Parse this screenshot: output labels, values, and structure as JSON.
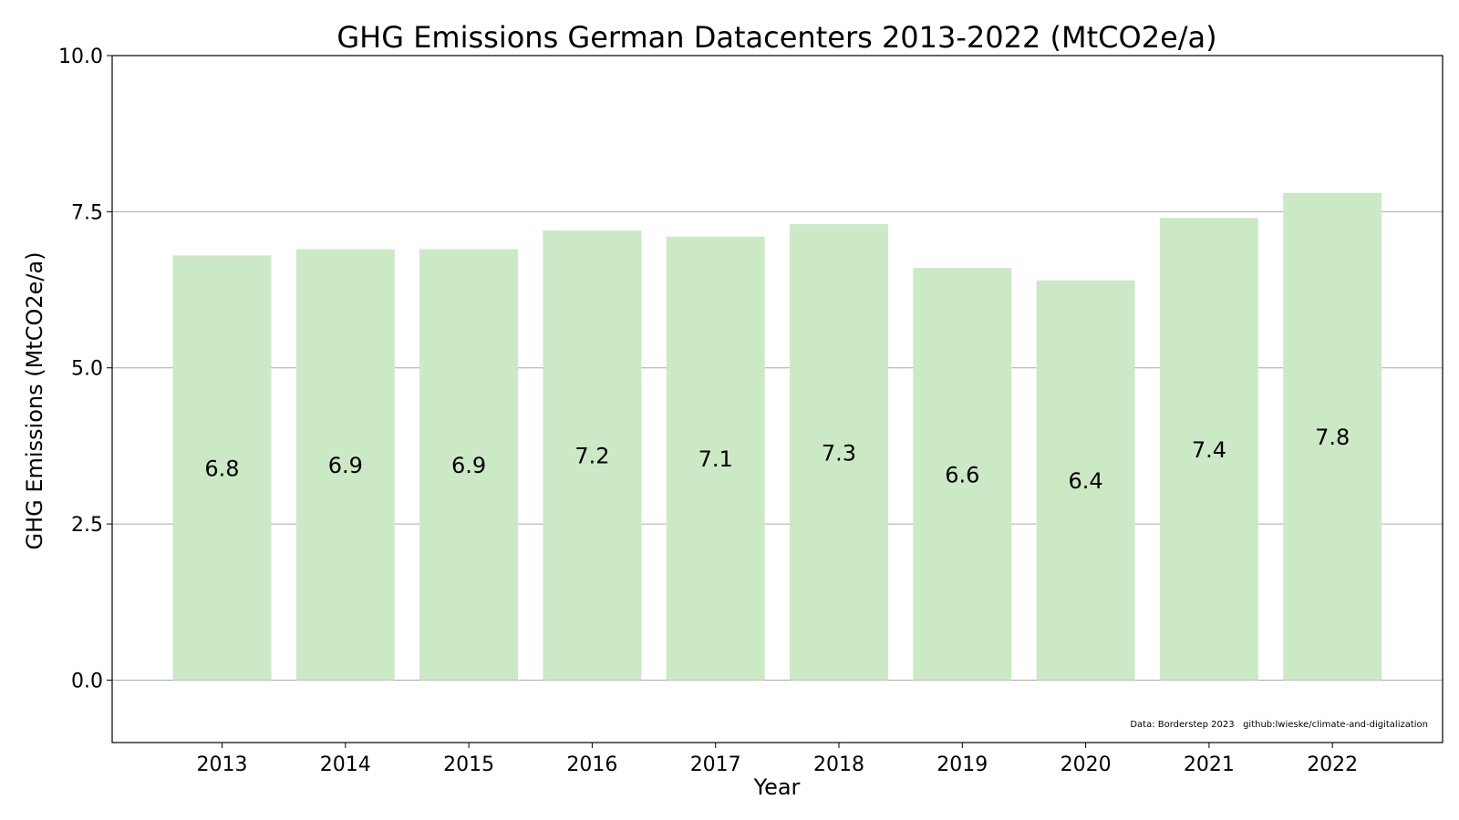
{
  "chart_data": {
    "type": "bar",
    "title": "GHG Emissions German Datacenters 2013-2022 (MtCO2e/a)",
    "xlabel": "Year",
    "ylabel": "GHG Emissions (MtCO2e/a)",
    "categories": [
      "2013",
      "2014",
      "2015",
      "2016",
      "2017",
      "2018",
      "2019",
      "2020",
      "2021",
      "2022"
    ],
    "values": [
      6.8,
      6.9,
      6.9,
      7.2,
      7.1,
      7.3,
      6.6,
      6.4,
      7.4,
      7.8
    ],
    "value_labels": [
      "6.8",
      "6.9",
      "6.9",
      "7.2",
      "7.1",
      "7.3",
      "6.6",
      "6.4",
      "7.4",
      "7.8"
    ],
    "ylim": [
      -1.0,
      10.0
    ],
    "yticks": [
      0.0,
      2.5,
      5.0,
      7.5,
      10.0
    ],
    "ytick_labels": [
      "0.0",
      "2.5",
      "5.0",
      "7.5",
      "10.0"
    ],
    "grid": "horizontal",
    "bar_color": "#cce9c6",
    "grid_color": "#aaaaaa",
    "value_label_position": "bar-center",
    "source_note": "Data: Borderstep 2023   github:lwieske/climate-and-digitalization"
  }
}
